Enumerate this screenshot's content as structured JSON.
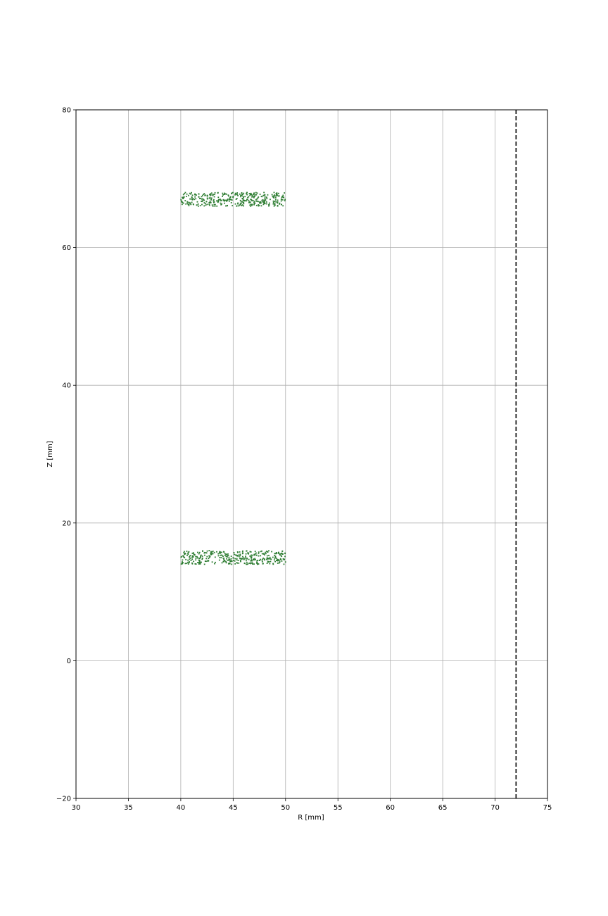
{
  "chart_data": {
    "type": "scatter",
    "xlabel": "R [mm]",
    "ylabel": "Z [mm]",
    "xlim": [
      30,
      75
    ],
    "ylim": [
      -20,
      80
    ],
    "xticks": [
      "30",
      "35",
      "40",
      "45",
      "50",
      "55",
      "60",
      "65",
      "70",
      "75"
    ],
    "yticks": [
      "−20",
      "0",
      "20",
      "40",
      "60",
      "80"
    ],
    "grid": true,
    "marker_color": "#2e7d32",
    "series": [
      {
        "r_range": [
          40,
          50
        ],
        "z_range": [
          66,
          68
        ],
        "count": 380
      },
      {
        "r_range": [
          40,
          50
        ],
        "z_range": [
          14,
          16
        ],
        "count": 380
      }
    ],
    "vlines": [
      {
        "x": 72,
        "style": "dashed",
        "color": "#000000"
      }
    ]
  }
}
